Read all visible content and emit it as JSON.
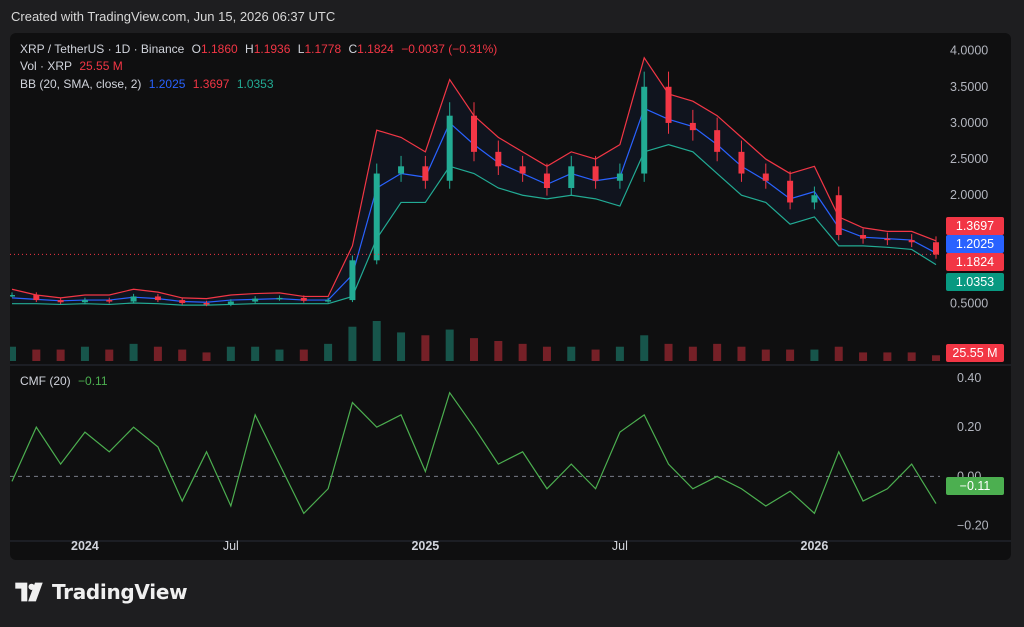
{
  "header": {
    "created_text": "Created with TradingView.com, Jun 15, 2026 06:37 UTC"
  },
  "legend": {
    "symbol": "XRP / TetherUS · 1D · Binance",
    "o_label": "O",
    "o_value": "1.1860",
    "h_label": "H",
    "h_value": "1.1936",
    "l_label": "L",
    "l_value": "1.1778",
    "c_label": "C",
    "c_value": "1.1824",
    "change": "−0.0037 (−0.31%)",
    "vol_label": "Vol · XRP",
    "vol_value": "25.55 M",
    "bb_label": "BB (20, SMA, close, 2)",
    "bb_basis": "1.2025",
    "bb_upper": "1.3697",
    "bb_lower": "1.0353",
    "cmf_label": "CMF (20)",
    "cmf_value": "−0.11"
  },
  "price_tags": {
    "upper": "1.3697",
    "basis": "1.2025",
    "close": "1.1824",
    "lower": "1.0353",
    "volume": "25.55 M",
    "cmf": "−0.11"
  },
  "colors": {
    "up": "#22ab94",
    "down": "#f23645",
    "bb_basis": "#2962ff",
    "bb_upper": "#f23645",
    "bb_lower": "#22ab94",
    "cmf": "#4caf50",
    "background": "#0f0f10",
    "page": "#1e1e20"
  },
  "footer": {
    "brand": "TradingView"
  },
  "chart_data": [
    {
      "type": "candlestick",
      "title": "XRP / TetherUS · 1D · Binance",
      "x": [
        "2023-10",
        "2023-11",
        "2023-12",
        "2024-01",
        "2024-02",
        "2024-03",
        "2024-04",
        "2024-05",
        "2024-06",
        "2024-07",
        "2024-08",
        "2024-09",
        "2024-10",
        "2024-11-01",
        "2024-11-15",
        "2024-12-01",
        "2024-12-15",
        "2025-01-01",
        "2025-01-15",
        "2025-02-01",
        "2025-02-15",
        "2025-03",
        "2025-04",
        "2025-05",
        "2025-06",
        "2025-07-01",
        "2025-07-15",
        "2025-08",
        "2025-09",
        "2025-10-01",
        "2025-10-15",
        "2025-11",
        "2025-12",
        "2026-01",
        "2026-02",
        "2026-03",
        "2026-04",
        "2026-05",
        "2026-06"
      ],
      "values": [
        0.62,
        0.55,
        0.52,
        0.55,
        0.53,
        0.6,
        0.55,
        0.51,
        0.49,
        0.53,
        0.57,
        0.58,
        0.54,
        0.55,
        1.1,
        2.3,
        2.4,
        2.2,
        3.1,
        2.6,
        2.4,
        2.3,
        2.1,
        2.4,
        2.2,
        2.3,
        3.5,
        3.0,
        2.9,
        2.6,
        2.3,
        2.2,
        1.9,
        2.0,
        1.45,
        1.4,
        1.38,
        1.35,
        1.18
      ],
      "bb_upper": [
        0.7,
        0.62,
        0.58,
        0.62,
        0.62,
        0.7,
        0.66,
        0.58,
        0.57,
        0.62,
        0.64,
        0.65,
        0.6,
        0.6,
        1.3,
        2.9,
        2.8,
        2.6,
        3.6,
        3.1,
        2.8,
        2.6,
        2.4,
        2.6,
        2.5,
        2.7,
        3.9,
        3.4,
        3.3,
        3.1,
        2.8,
        2.5,
        2.3,
        2.4,
        1.7,
        1.55,
        1.5,
        1.5,
        1.37
      ],
      "bb_basis": [
        0.58,
        0.56,
        0.54,
        0.55,
        0.55,
        0.59,
        0.57,
        0.53,
        0.52,
        0.55,
        0.56,
        0.57,
        0.55,
        0.55,
        0.9,
        2.1,
        2.3,
        2.25,
        3.0,
        2.7,
        2.45,
        2.3,
        2.15,
        2.3,
        2.2,
        2.25,
        3.2,
        3.05,
        2.95,
        2.7,
        2.4,
        2.2,
        1.95,
        2.05,
        1.55,
        1.42,
        1.4,
        1.38,
        1.2
      ],
      "bb_lower": [
        0.5,
        0.5,
        0.49,
        0.5,
        0.49,
        0.51,
        0.5,
        0.48,
        0.48,
        0.49,
        0.5,
        0.5,
        0.5,
        0.5,
        0.6,
        1.4,
        1.9,
        1.9,
        2.4,
        2.3,
        2.1,
        2.0,
        1.95,
        2.0,
        1.95,
        1.85,
        2.6,
        2.7,
        2.6,
        2.3,
        2.0,
        1.9,
        1.6,
        1.7,
        1.3,
        1.3,
        1.28,
        1.25,
        1.04
      ],
      "volume": [
        0.5,
        0.4,
        0.4,
        0.5,
        0.4,
        0.6,
        0.5,
        0.4,
        0.3,
        0.5,
        0.5,
        0.4,
        0.4,
        0.6,
        1.2,
        1.4,
        1.0,
        0.9,
        1.1,
        0.8,
        0.7,
        0.6,
        0.5,
        0.5,
        0.4,
        0.5,
        0.9,
        0.6,
        0.5,
        0.6,
        0.5,
        0.4,
        0.4,
        0.4,
        0.5,
        0.3,
        0.3,
        0.3,
        0.2
      ],
      "cmf": [
        -0.02,
        0.2,
        0.05,
        0.18,
        0.1,
        0.2,
        0.12,
        -0.1,
        0.1,
        -0.12,
        0.25,
        0.05,
        -0.15,
        -0.05,
        0.3,
        0.2,
        0.25,
        0.02,
        0.34,
        0.2,
        0.05,
        0.1,
        -0.05,
        0.05,
        -0.05,
        0.18,
        0.25,
        0.05,
        -0.05,
        0.0,
        -0.05,
        -0.12,
        -0.06,
        -0.15,
        0.1,
        -0.1,
        -0.05,
        0.05,
        -0.11
      ],
      "ylim": [
        0.0,
        4.2
      ],
      "y_ticks": [
        "4.0000",
        "3.5000",
        "3.0000",
        "2.5000",
        "2.0000",
        "0.5000"
      ],
      "x_ticks": [
        "2024",
        "Jul",
        "2025",
        "Jul",
        "2026"
      ],
      "cmf_ticks": [
        "0.40",
        "0.20",
        "0.00",
        "−0.20"
      ],
      "cmf_ylim": [
        -0.25,
        0.42
      ],
      "last_close": 1.1824
    }
  ]
}
